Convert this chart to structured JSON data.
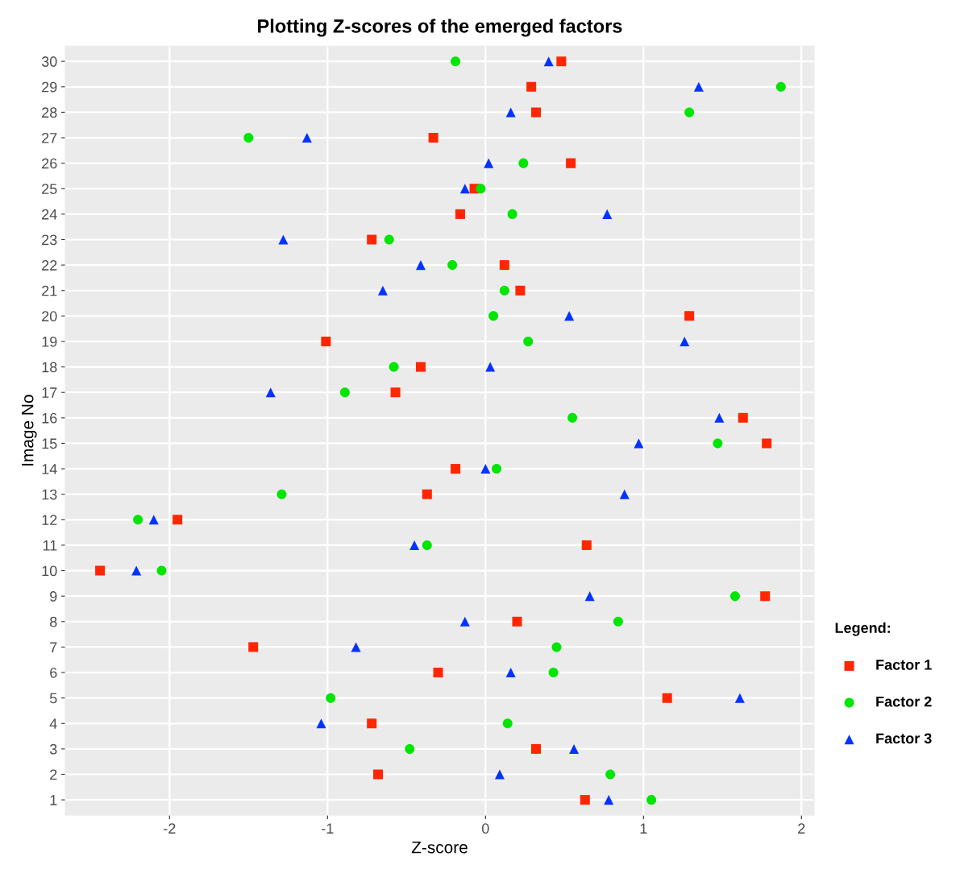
{
  "chart_data": {
    "type": "scatter",
    "title": "Plotting Z-scores of the emerged factors",
    "xlabel": "Z-score",
    "ylabel": "Image No",
    "orientation": "horizontal",
    "legend_title": "Legend:",
    "legend": "right",
    "grid": true,
    "categories": [
      "30",
      "29",
      "28",
      "27",
      "26",
      "25",
      "24",
      "23",
      "22",
      "21",
      "20",
      "19",
      "18",
      "17",
      "16",
      "15",
      "14",
      "13",
      "12",
      "11",
      "10",
      "9",
      "8",
      "7",
      "6",
      "5",
      "4",
      "3",
      "2",
      "1"
    ],
    "xlim": [
      -2.66,
      2.08
    ],
    "xticks": [
      -2,
      -1,
      0,
      1,
      2
    ],
    "series": [
      {
        "name": "Factor 1",
        "color": "#ff2600",
        "marker": "square",
        "values": [
          0.48,
          0.29,
          0.32,
          -0.33,
          0.54,
          -0.07,
          -0.16,
          -0.72,
          0.12,
          0.22,
          1.29,
          -1.01,
          -0.41,
          -0.57,
          1.63,
          1.78,
          -0.19,
          -0.37,
          -1.95,
          0.64,
          -2.44,
          1.77,
          0.2,
          -1.47,
          -0.3,
          1.15,
          -0.72,
          0.32,
          -0.68,
          0.63
        ]
      },
      {
        "name": "Factor 2",
        "color": "#00e600",
        "marker": "circle",
        "values": [
          -0.19,
          1.87,
          1.29,
          -1.5,
          0.24,
          -0.03,
          0.17,
          -0.61,
          -0.21,
          0.12,
          0.05,
          0.27,
          -0.58,
          -0.89,
          0.55,
          1.47,
          0.07,
          -1.29,
          -2.2,
          -0.37,
          -2.05,
          1.58,
          0.84,
          0.45,
          0.43,
          -0.98,
          0.14,
          -0.48,
          0.79,
          1.05
        ]
      },
      {
        "name": "Factor 3",
        "color": "#0433ff",
        "marker": "triangle",
        "values": [
          0.4,
          1.35,
          0.16,
          -1.13,
          0.02,
          -0.13,
          0.77,
          -1.28,
          -0.41,
          -0.65,
          0.53,
          1.26,
          0.03,
          -1.36,
          1.48,
          0.97,
          0.0,
          0.88,
          -2.1,
          -0.45,
          -2.21,
          0.66,
          -0.13,
          -0.82,
          0.16,
          1.61,
          -1.04,
          0.56,
          0.09,
          0.78
        ]
      }
    ]
  }
}
